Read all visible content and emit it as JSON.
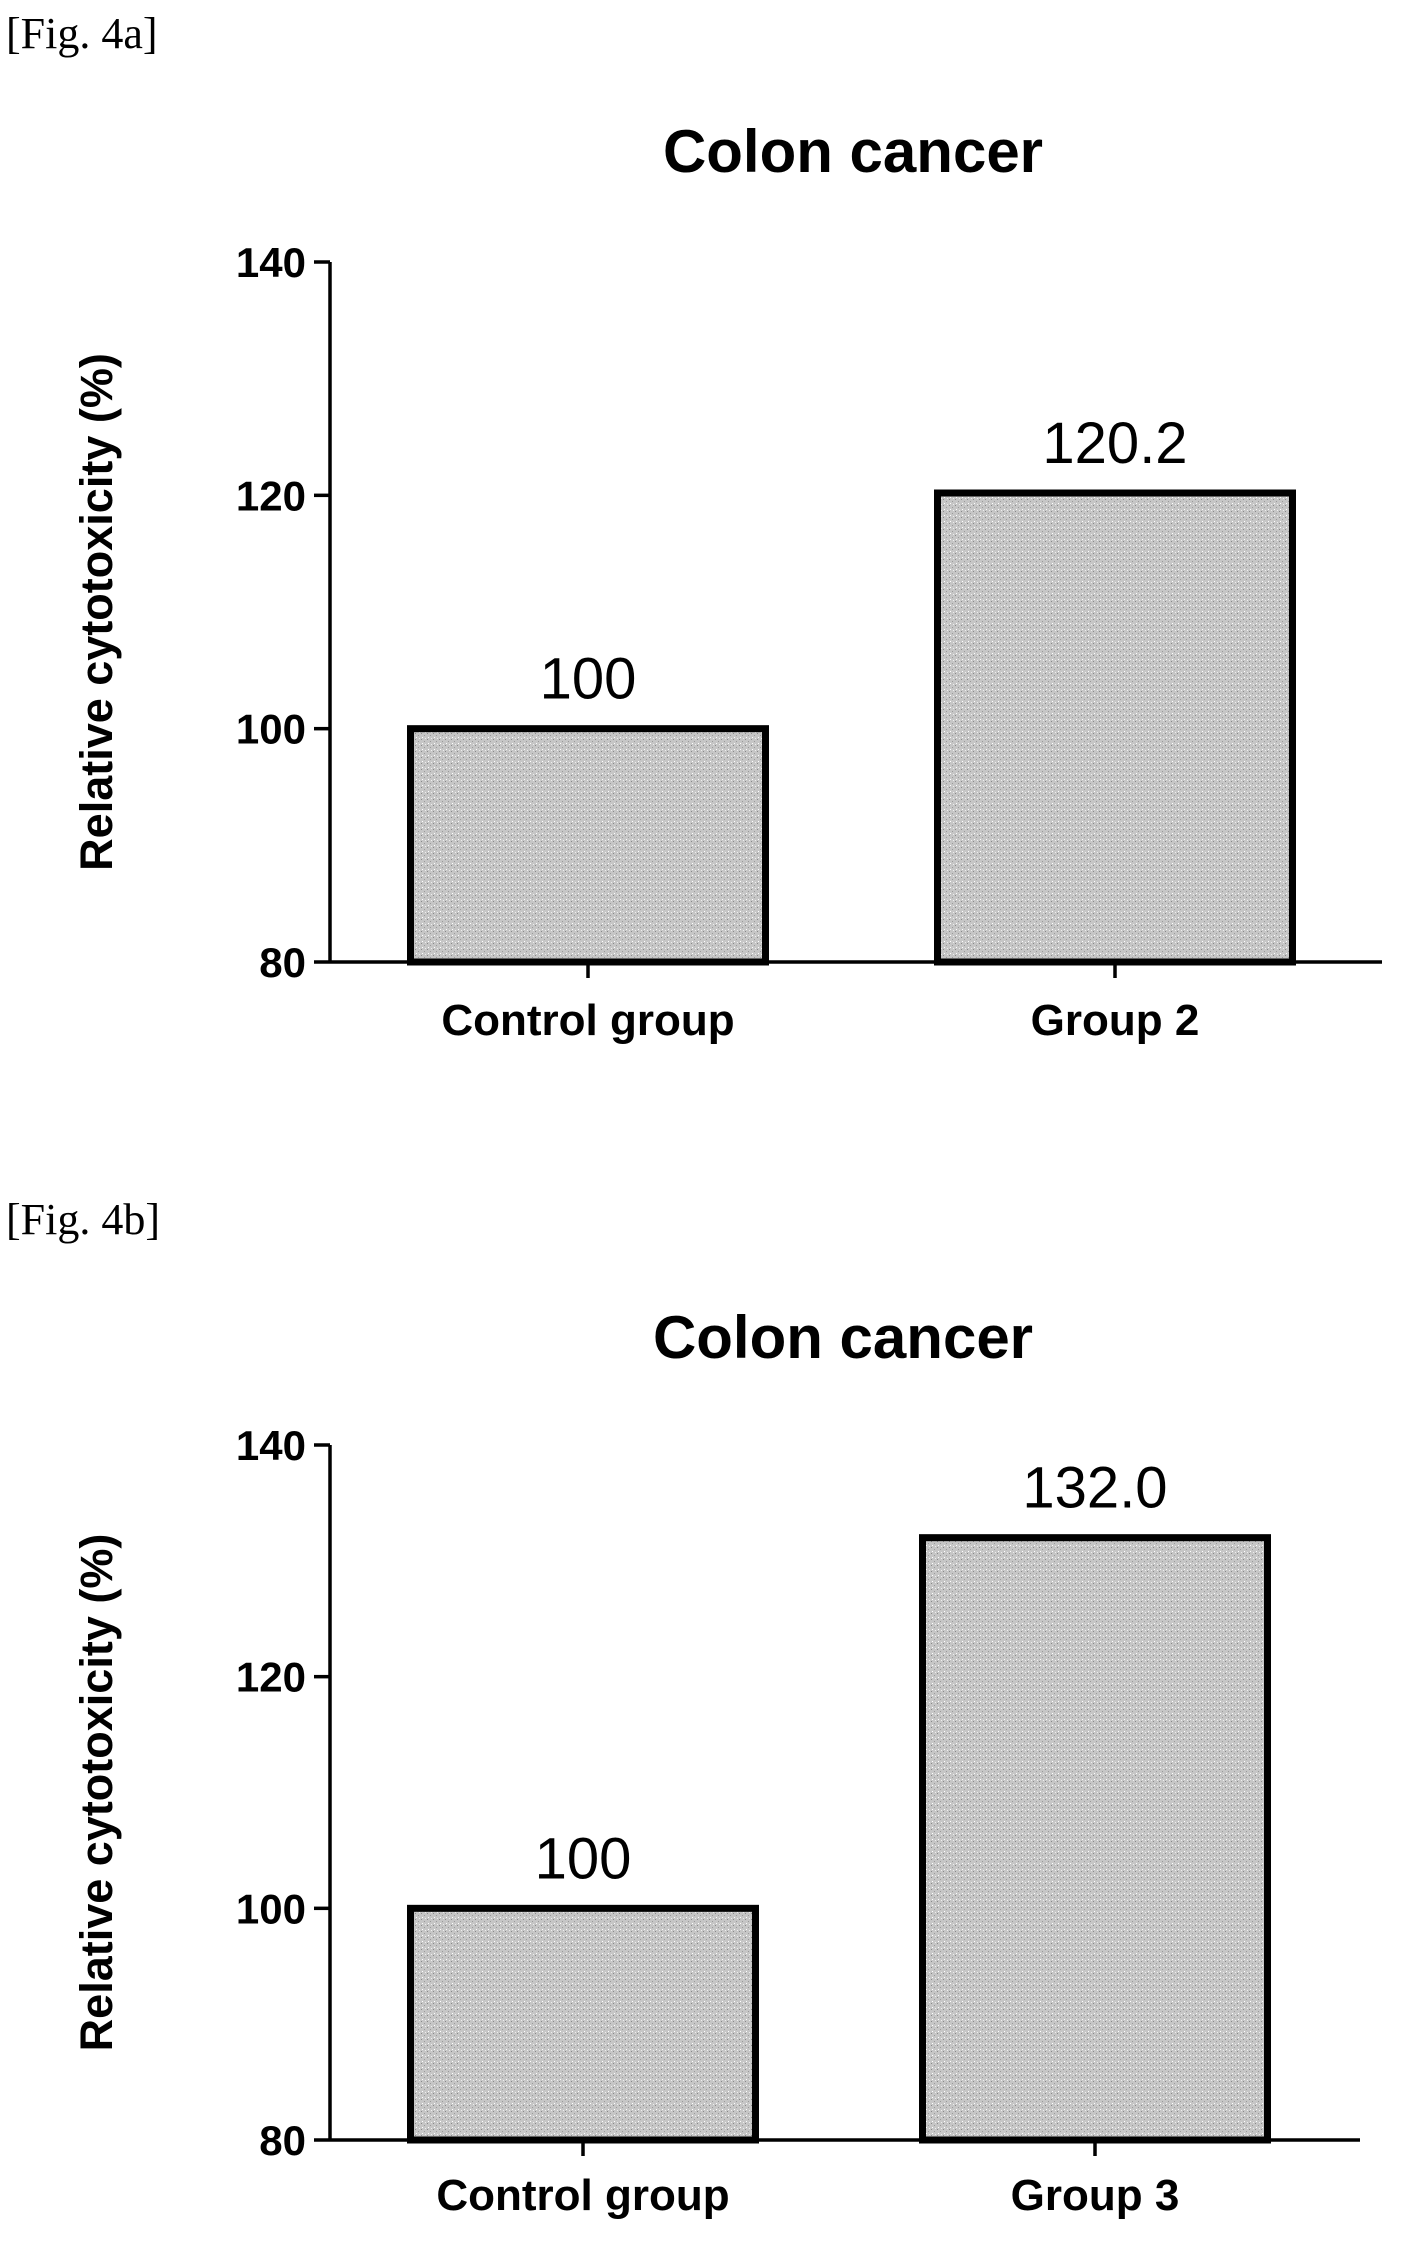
{
  "figures": [
    {
      "label": "[Fig. 4a]"
    },
    {
      "label": "[Fig. 4b]"
    }
  ],
  "colors": {
    "bar_fill": "#c6c6c6",
    "bar_stroke": "#000000",
    "axis": "#000000"
  },
  "chart_data": [
    {
      "type": "bar",
      "title": "Colon cancer",
      "ylabel": "Relative cytotoxicity (%)",
      "xlabel": "",
      "ylim": [
        80,
        140
      ],
      "yticks": [
        80,
        100,
        120,
        140
      ],
      "categories": [
        "Control group",
        "Group 2"
      ],
      "values": [
        100,
        120.2
      ],
      "value_labels": [
        "100",
        "120.2"
      ],
      "grid": false,
      "legend": "none"
    },
    {
      "type": "bar",
      "title": "Colon cancer",
      "ylabel": "Relative cytotoxicity (%)",
      "xlabel": "",
      "ylim": [
        80,
        140
      ],
      "yticks": [
        80,
        100,
        120,
        140
      ],
      "categories": [
        "Control group",
        "Group 3"
      ],
      "values": [
        100,
        132.0
      ],
      "value_labels": [
        "100",
        "132.0"
      ],
      "grid": false,
      "legend": "none"
    }
  ]
}
